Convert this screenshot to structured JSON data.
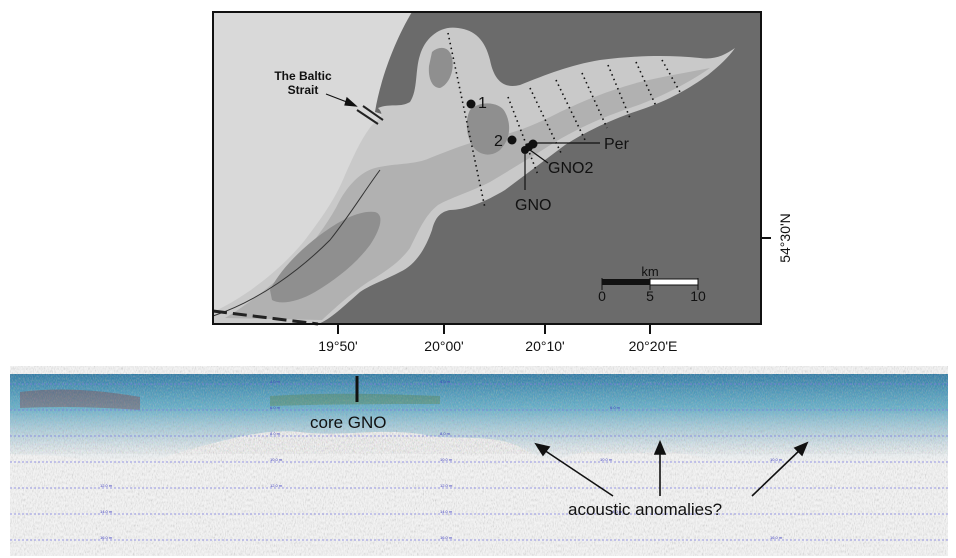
{
  "map": {
    "strait_label_line1": "The Baltic",
    "strait_label_line2": "Strait",
    "stations": [
      {
        "label": "1"
      },
      {
        "label": "2"
      },
      {
        "label": "Per"
      },
      {
        "label": "GNO2"
      },
      {
        "label": "GNO"
      }
    ],
    "scalebar": {
      "unit": "km",
      "ticks": [
        "0",
        "5",
        "10"
      ]
    },
    "lon_labels": [
      "19°50'",
      "20°00'",
      "20°10'",
      "20°20'E"
    ],
    "lat_label": "54°30'N",
    "colors": {
      "land": "#6b6b6b",
      "open_sea": "#d9d9d9",
      "lagoon_shallow": "#c9c9c9",
      "lagoon_mid": "#b1b1b1",
      "lagoon_deep": "#8f8f8f"
    }
  },
  "profile": {
    "core_label": "core GNO",
    "anomaly_label": "acoustic anomalies?",
    "depth_grid_labels": [
      "4.0 m",
      "6.0 m",
      "8.0 m",
      "10.0 m",
      "12.0 m",
      "14.0 m",
      "16.0 m"
    ]
  }
}
